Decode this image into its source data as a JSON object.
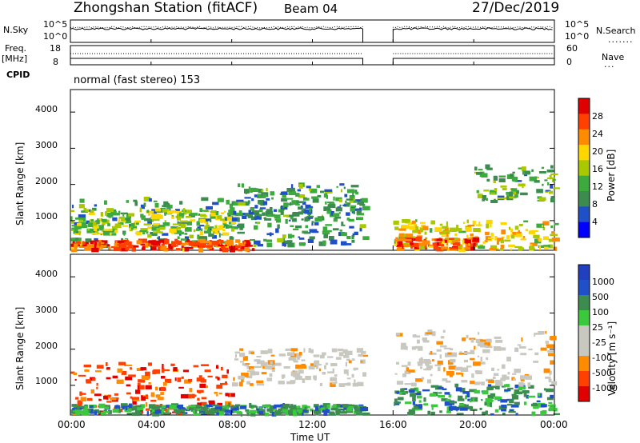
{
  "header": {
    "station": "Zhongshan Station (fitACF)",
    "beam": "Beam 04",
    "date": "27/Dec/2019"
  },
  "left_labels": {
    "nsky": "N.Sky",
    "freq": "Freq.",
    "mhz": "[MHz]",
    "cpid": "CPID"
  },
  "right_labels": {
    "nsearch": "N.Search",
    "nave": "Nave"
  },
  "mode_label": "normal (fast stereo) 153",
  "colors": {
    "power": [
      "#0000ff",
      "#2050c8",
      "#3c8c50",
      "#3caa3c",
      "#aac800",
      "#ffd700",
      "#ff8c00",
      "#ff4000",
      "#e00000"
    ],
    "velocity": [
      "#e00000",
      "#ff4000",
      "#ff8c00",
      "#c8c8c0",
      "#c8c8c0",
      "#3cc83c",
      "#3c8c50",
      "#2050c8",
      "#2040c0"
    ]
  },
  "chart_data": [
    {
      "type": "line",
      "name": "noise-panel",
      "ylabel_left": "N.Sky",
      "ylabel_right": "N.Search",
      "yticks_left": [
        "10^5",
        "10^0"
      ],
      "yticks_right": [
        "10^5",
        "10^0"
      ],
      "x_range_hours": [
        0,
        24
      ],
      "data_gap_hours": [
        14.5,
        16.0
      ]
    },
    {
      "type": "line",
      "name": "frequency-panel",
      "yticks_left": [
        "18",
        "8"
      ],
      "yticks_right": [
        "60",
        "0"
      ],
      "ylabel_right": "Nave",
      "x_range_hours": [
        0,
        24
      ],
      "data_gap_hours": [
        14.5,
        16.0
      ]
    },
    {
      "type": "heatmap",
      "name": "power-panel",
      "ylabel": "Slant Range [km]",
      "yticks": [
        "1000",
        "2000",
        "3000",
        "4000"
      ],
      "ylim_km": [
        180,
        4600
      ],
      "colorbar_label": "Power [dB]",
      "colorbar_ticks": [
        "4",
        "8",
        "12",
        "16",
        "20",
        "24",
        "28"
      ],
      "x_range_hours": [
        0,
        24
      ],
      "data_gap_hours": [
        14.5,
        16.0
      ],
      "regions": [
        {
          "t": [
            0,
            14.5
          ],
          "r_km": [
            300,
            1600
          ],
          "power_db": 8
        },
        {
          "t": [
            0,
            9
          ],
          "r_km": [
            180,
            450
          ],
          "power_db": 24
        },
        {
          "t": [
            0,
            8
          ],
          "r_km": [
            600,
            1300
          ],
          "power_db": 14
        },
        {
          "t": [
            8,
            14.5
          ],
          "r_km": [
            1000,
            2000
          ],
          "power_db": 8
        },
        {
          "t": [
            16,
            24
          ],
          "r_km": [
            200,
            1000
          ],
          "power_db": 16
        },
        {
          "t": [
            16,
            20
          ],
          "r_km": [
            200,
            500
          ],
          "power_db": 24
        },
        {
          "t": [
            20,
            24
          ],
          "r_km": [
            1500,
            2500
          ],
          "power_db": 10
        }
      ]
    },
    {
      "type": "heatmap",
      "name": "velocity-panel",
      "ylabel": "Slant Range [km]",
      "yticks": [
        "1000",
        "2000",
        "3000",
        "4000"
      ],
      "ylim_km": [
        180,
        4600
      ],
      "colorbar_label": "Velocity [m s⁻¹]",
      "colorbar_ticks": [
        "1000",
        "500",
        "100",
        "25",
        "-25",
        "-100",
        "-500",
        "-1000"
      ],
      "x_range_hours": [
        0,
        24
      ],
      "data_gap_hours": [
        14.5,
        16.0
      ],
      "regions": [
        {
          "t": [
            0,
            8
          ],
          "r_km": [
            200,
            1600
          ],
          "velocity": -150
        },
        {
          "t": [
            0,
            14.5
          ],
          "r_km": [
            200,
            450
          ],
          "velocity": 150
        },
        {
          "t": [
            8,
            14.5
          ],
          "r_km": [
            1000,
            2000
          ],
          "velocity": 0
        },
        {
          "t": [
            16,
            24
          ],
          "r_km": [
            200,
            1000
          ],
          "velocity": 150
        },
        {
          "t": [
            16,
            24
          ],
          "r_km": [
            1000,
            2500
          ],
          "velocity": 0
        }
      ]
    }
  ],
  "x_axis": {
    "label": "Time UT",
    "ticks": [
      "00:00",
      "04:00",
      "08:00",
      "12:00",
      "16:00",
      "20:00",
      "00:00"
    ]
  }
}
